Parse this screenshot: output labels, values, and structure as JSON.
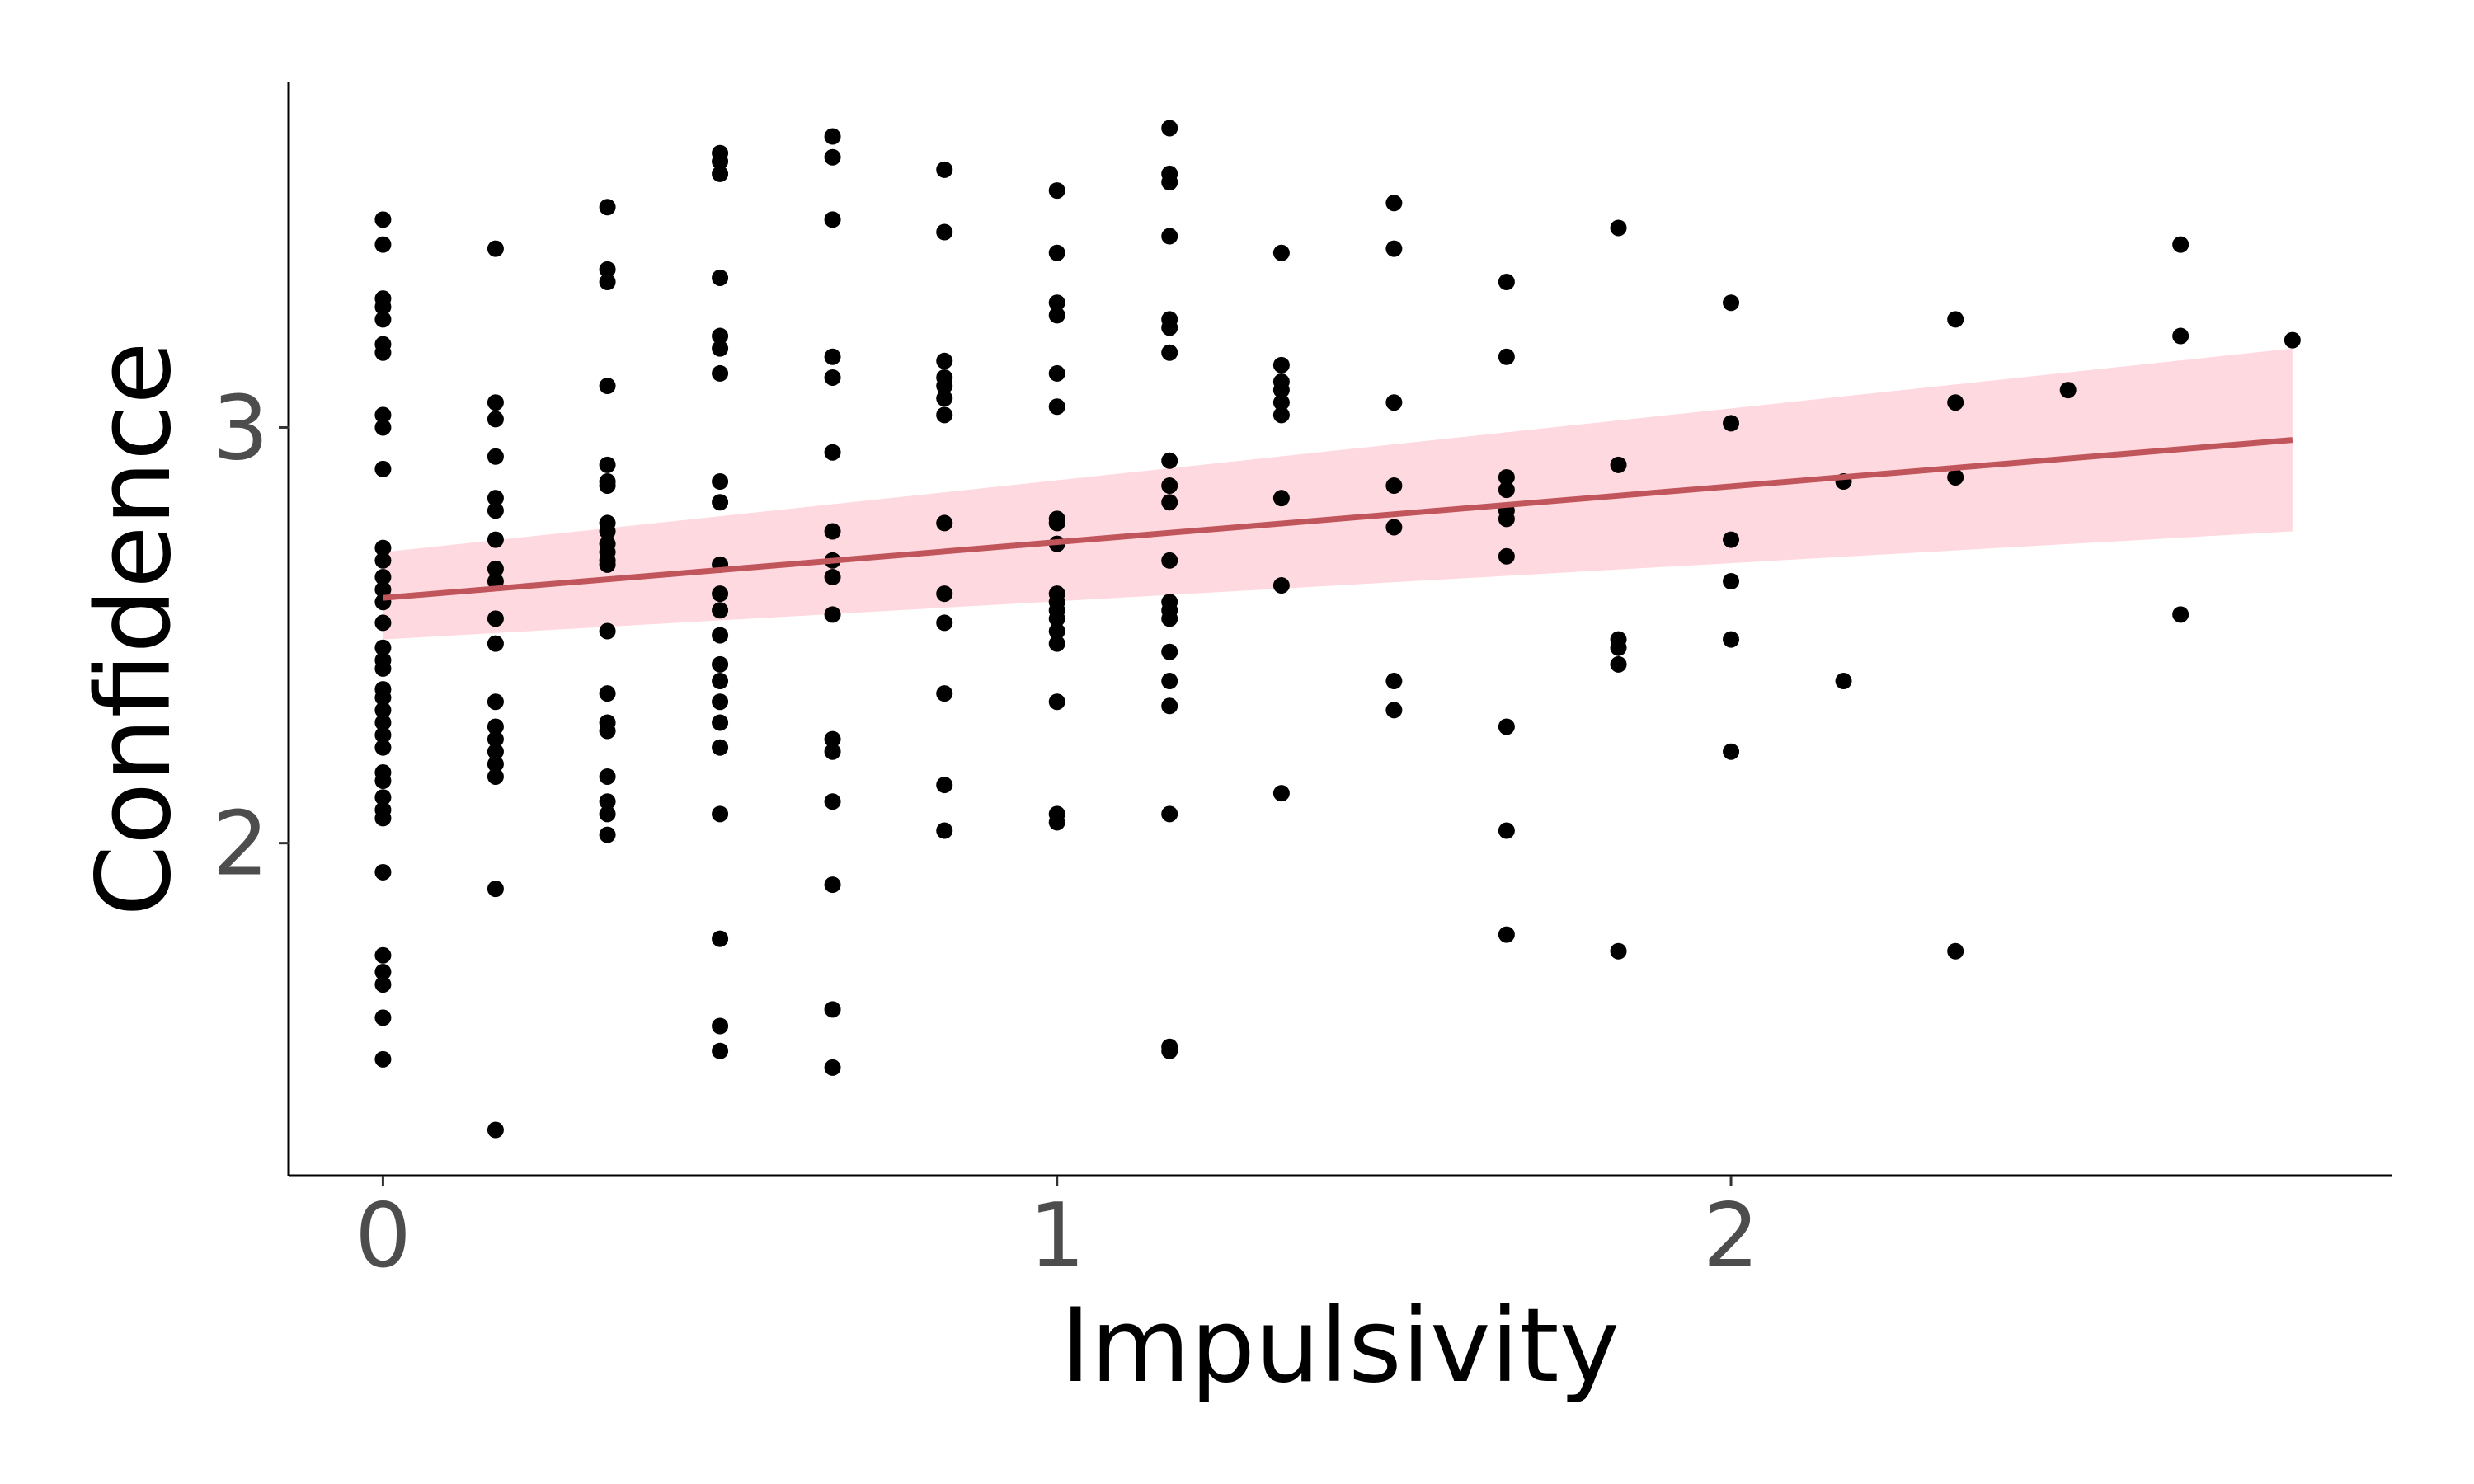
{
  "chart_data": {
    "type": "scatter",
    "title": "",
    "xlabel": "Impulsivity",
    "ylabel": "Confidence",
    "xlim": [
      -0.14,
      2.98
    ],
    "ylim": [
      1.2,
      3.83
    ],
    "xticks": [
      0,
      1,
      2
    ],
    "yticks": [
      2,
      3
    ],
    "x_tick_labels": [
      "0",
      "1",
      "2"
    ],
    "y_tick_labels": [
      "2",
      "3"
    ],
    "grid": false,
    "legend": "none",
    "colors": {
      "points": "#000000",
      "fit_line": "#c0565b",
      "ci_band": "#ffc0cb"
    },
    "fit": {
      "x": [
        0,
        2.833
      ],
      "y": [
        2.59,
        2.97
      ],
      "ci_lower": [
        2.49,
        2.75
      ],
      "ci_upper": [
        2.7,
        3.19
      ]
    },
    "points": [
      {
        "x": 0,
        "y": 3.5
      },
      {
        "x": 0,
        "y": 3.44
      },
      {
        "x": 0,
        "y": 3.31
      },
      {
        "x": 0,
        "y": 3.29
      },
      {
        "x": 0,
        "y": 3.26
      },
      {
        "x": 0,
        "y": 3.2
      },
      {
        "x": 0,
        "y": 3.18
      },
      {
        "x": 0,
        "y": 3.03
      },
      {
        "x": 0,
        "y": 3.0
      },
      {
        "x": 0,
        "y": 2.9
      },
      {
        "x": 0,
        "y": 2.71
      },
      {
        "x": 0,
        "y": 2.68
      },
      {
        "x": 0,
        "y": 2.64
      },
      {
        "x": 0,
        "y": 2.61
      },
      {
        "x": 0,
        "y": 2.58
      },
      {
        "x": 0,
        "y": 2.53
      },
      {
        "x": 0,
        "y": 2.47
      },
      {
        "x": 0,
        "y": 2.44
      },
      {
        "x": 0,
        "y": 2.42
      },
      {
        "x": 0,
        "y": 2.37
      },
      {
        "x": 0,
        "y": 2.35
      },
      {
        "x": 0,
        "y": 2.32
      },
      {
        "x": 0,
        "y": 2.29
      },
      {
        "x": 0,
        "y": 2.26
      },
      {
        "x": 0,
        "y": 2.23
      },
      {
        "x": 0,
        "y": 2.17
      },
      {
        "x": 0,
        "y": 2.15
      },
      {
        "x": 0,
        "y": 2.11
      },
      {
        "x": 0,
        "y": 2.08
      },
      {
        "x": 0,
        "y": 2.06
      },
      {
        "x": 0,
        "y": 1.93
      },
      {
        "x": 0,
        "y": 1.73
      },
      {
        "x": 0,
        "y": 1.69
      },
      {
        "x": 0,
        "y": 1.66
      },
      {
        "x": 0,
        "y": 1.58
      },
      {
        "x": 0,
        "y": 1.48
      },
      {
        "x": 0.167,
        "y": 3.43
      },
      {
        "x": 0.167,
        "y": 3.06
      },
      {
        "x": 0.167,
        "y": 3.02
      },
      {
        "x": 0.167,
        "y": 2.93
      },
      {
        "x": 0.167,
        "y": 2.83
      },
      {
        "x": 0.167,
        "y": 2.8
      },
      {
        "x": 0.167,
        "y": 2.73
      },
      {
        "x": 0.167,
        "y": 2.66
      },
      {
        "x": 0.167,
        "y": 2.63
      },
      {
        "x": 0.167,
        "y": 2.54
      },
      {
        "x": 0.167,
        "y": 2.48
      },
      {
        "x": 0.167,
        "y": 2.34
      },
      {
        "x": 0.167,
        "y": 2.28
      },
      {
        "x": 0.167,
        "y": 2.25
      },
      {
        "x": 0.167,
        "y": 2.22
      },
      {
        "x": 0.167,
        "y": 2.19
      },
      {
        "x": 0.167,
        "y": 2.16
      },
      {
        "x": 0.167,
        "y": 1.89
      },
      {
        "x": 0.167,
        "y": 1.31
      },
      {
        "x": 0.333,
        "y": 3.53
      },
      {
        "x": 0.333,
        "y": 3.38
      },
      {
        "x": 0.333,
        "y": 3.35
      },
      {
        "x": 0.333,
        "y": 3.1
      },
      {
        "x": 0.333,
        "y": 2.91
      },
      {
        "x": 0.333,
        "y": 2.87
      },
      {
        "x": 0.333,
        "y": 2.86
      },
      {
        "x": 0.333,
        "y": 2.77
      },
      {
        "x": 0.333,
        "y": 2.75
      },
      {
        "x": 0.333,
        "y": 2.72
      },
      {
        "x": 0.333,
        "y": 2.7
      },
      {
        "x": 0.333,
        "y": 2.68
      },
      {
        "x": 0.333,
        "y": 2.67
      },
      {
        "x": 0.333,
        "y": 2.51
      },
      {
        "x": 0.333,
        "y": 2.36
      },
      {
        "x": 0.333,
        "y": 2.29
      },
      {
        "x": 0.333,
        "y": 2.27
      },
      {
        "x": 0.333,
        "y": 2.16
      },
      {
        "x": 0.333,
        "y": 2.1
      },
      {
        "x": 0.333,
        "y": 2.07
      },
      {
        "x": 0.333,
        "y": 2.02
      },
      {
        "x": 0.5,
        "y": 3.66
      },
      {
        "x": 0.5,
        "y": 3.64
      },
      {
        "x": 0.5,
        "y": 3.61
      },
      {
        "x": 0.5,
        "y": 3.36
      },
      {
        "x": 0.5,
        "y": 3.22
      },
      {
        "x": 0.5,
        "y": 3.19
      },
      {
        "x": 0.5,
        "y": 3.13
      },
      {
        "x": 0.5,
        "y": 2.87
      },
      {
        "x": 0.5,
        "y": 2.82
      },
      {
        "x": 0.5,
        "y": 2.67
      },
      {
        "x": 0.5,
        "y": 2.6
      },
      {
        "x": 0.5,
        "y": 2.56
      },
      {
        "x": 0.5,
        "y": 2.5
      },
      {
        "x": 0.5,
        "y": 2.43
      },
      {
        "x": 0.5,
        "y": 2.39
      },
      {
        "x": 0.5,
        "y": 2.34
      },
      {
        "x": 0.5,
        "y": 2.29
      },
      {
        "x": 0.5,
        "y": 2.23
      },
      {
        "x": 0.5,
        "y": 2.07
      },
      {
        "x": 0.5,
        "y": 1.77
      },
      {
        "x": 0.5,
        "y": 1.56
      },
      {
        "x": 0.5,
        "y": 1.5
      },
      {
        "x": 0.667,
        "y": 3.7
      },
      {
        "x": 0.667,
        "y": 3.65
      },
      {
        "x": 0.667,
        "y": 3.5
      },
      {
        "x": 0.667,
        "y": 3.17
      },
      {
        "x": 0.667,
        "y": 3.12
      },
      {
        "x": 0.667,
        "y": 2.94
      },
      {
        "x": 0.667,
        "y": 2.75
      },
      {
        "x": 0.667,
        "y": 2.68
      },
      {
        "x": 0.667,
        "y": 2.64
      },
      {
        "x": 0.667,
        "y": 2.55
      },
      {
        "x": 0.667,
        "y": 2.25
      },
      {
        "x": 0.667,
        "y": 2.22
      },
      {
        "x": 0.667,
        "y": 2.1
      },
      {
        "x": 0.667,
        "y": 1.9
      },
      {
        "x": 0.667,
        "y": 1.6
      },
      {
        "x": 0.667,
        "y": 1.46
      },
      {
        "x": 0.833,
        "y": 3.62
      },
      {
        "x": 0.833,
        "y": 3.47
      },
      {
        "x": 0.833,
        "y": 3.16
      },
      {
        "x": 0.833,
        "y": 3.12
      },
      {
        "x": 0.833,
        "y": 3.1
      },
      {
        "x": 0.833,
        "y": 3.07
      },
      {
        "x": 0.833,
        "y": 3.03
      },
      {
        "x": 0.833,
        "y": 2.77
      },
      {
        "x": 0.833,
        "y": 2.6
      },
      {
        "x": 0.833,
        "y": 2.53
      },
      {
        "x": 0.833,
        "y": 2.36
      },
      {
        "x": 0.833,
        "y": 2.14
      },
      {
        "x": 0.833,
        "y": 2.03
      },
      {
        "x": 1,
        "y": 3.57
      },
      {
        "x": 1,
        "y": 3.42
      },
      {
        "x": 1,
        "y": 3.3
      },
      {
        "x": 1,
        "y": 3.27
      },
      {
        "x": 1,
        "y": 3.13
      },
      {
        "x": 1,
        "y": 3.05
      },
      {
        "x": 1,
        "y": 2.78
      },
      {
        "x": 1,
        "y": 2.77
      },
      {
        "x": 1,
        "y": 2.72
      },
      {
        "x": 1,
        "y": 2.6
      },
      {
        "x": 1,
        "y": 2.58
      },
      {
        "x": 1,
        "y": 2.56
      },
      {
        "x": 1,
        "y": 2.54
      },
      {
        "x": 1,
        "y": 2.51
      },
      {
        "x": 1,
        "y": 2.48
      },
      {
        "x": 1,
        "y": 2.34
      },
      {
        "x": 1,
        "y": 2.07
      },
      {
        "x": 1,
        "y": 2.05
      },
      {
        "x": 1.167,
        "y": 3.72
      },
      {
        "x": 1.167,
        "y": 3.61
      },
      {
        "x": 1.167,
        "y": 3.59
      },
      {
        "x": 1.167,
        "y": 3.46
      },
      {
        "x": 1.167,
        "y": 3.26
      },
      {
        "x": 1.167,
        "y": 3.24
      },
      {
        "x": 1.167,
        "y": 3.18
      },
      {
        "x": 1.167,
        "y": 2.92
      },
      {
        "x": 1.167,
        "y": 2.86
      },
      {
        "x": 1.167,
        "y": 2.82
      },
      {
        "x": 1.167,
        "y": 2.68
      },
      {
        "x": 1.167,
        "y": 2.58
      },
      {
        "x": 1.167,
        "y": 2.56
      },
      {
        "x": 1.167,
        "y": 2.54
      },
      {
        "x": 1.167,
        "y": 2.46
      },
      {
        "x": 1.167,
        "y": 2.39
      },
      {
        "x": 1.167,
        "y": 2.33
      },
      {
        "x": 1.167,
        "y": 2.07
      },
      {
        "x": 1.167,
        "y": 1.51
      },
      {
        "x": 1.167,
        "y": 1.5
      },
      {
        "x": 1.333,
        "y": 3.42
      },
      {
        "x": 1.333,
        "y": 3.15
      },
      {
        "x": 1.333,
        "y": 3.11
      },
      {
        "x": 1.333,
        "y": 3.09
      },
      {
        "x": 1.333,
        "y": 3.06
      },
      {
        "x": 1.333,
        "y": 3.03
      },
      {
        "x": 1.333,
        "y": 2.83
      },
      {
        "x": 1.333,
        "y": 2.62
      },
      {
        "x": 1.333,
        "y": 2.12
      },
      {
        "x": 1.5,
        "y": 3.54
      },
      {
        "x": 1.5,
        "y": 3.43
      },
      {
        "x": 1.5,
        "y": 3.06
      },
      {
        "x": 1.5,
        "y": 2.86
      },
      {
        "x": 1.5,
        "y": 2.76
      },
      {
        "x": 1.5,
        "y": 2.39
      },
      {
        "x": 1.5,
        "y": 2.32
      },
      {
        "x": 1.667,
        "y": 3.35
      },
      {
        "x": 1.667,
        "y": 3.17
      },
      {
        "x": 1.667,
        "y": 2.88
      },
      {
        "x": 1.667,
        "y": 2.85
      },
      {
        "x": 1.667,
        "y": 2.8
      },
      {
        "x": 1.667,
        "y": 2.78
      },
      {
        "x": 1.667,
        "y": 2.69
      },
      {
        "x": 1.667,
        "y": 2.28
      },
      {
        "x": 1.667,
        "y": 2.03
      },
      {
        "x": 1.667,
        "y": 1.78
      },
      {
        "x": 1.833,
        "y": 3.48
      },
      {
        "x": 1.833,
        "y": 2.91
      },
      {
        "x": 1.833,
        "y": 2.49
      },
      {
        "x": 1.833,
        "y": 2.47
      },
      {
        "x": 1.833,
        "y": 2.43
      },
      {
        "x": 1.833,
        "y": 1.74
      },
      {
        "x": 2,
        "y": 3.3
      },
      {
        "x": 2,
        "y": 3.01
      },
      {
        "x": 2,
        "y": 2.73
      },
      {
        "x": 2,
        "y": 2.63
      },
      {
        "x": 2,
        "y": 2.49
      },
      {
        "x": 2,
        "y": 2.22
      },
      {
        "x": 2.167,
        "y": 2.87
      },
      {
        "x": 2.167,
        "y": 2.39
      },
      {
        "x": 2.333,
        "y": 3.26
      },
      {
        "x": 2.333,
        "y": 3.06
      },
      {
        "x": 2.333,
        "y": 2.88
      },
      {
        "x": 2.333,
        "y": 1.74
      },
      {
        "x": 2.5,
        "y": 3.09
      },
      {
        "x": 2.667,
        "y": 3.44
      },
      {
        "x": 2.667,
        "y": 3.22
      },
      {
        "x": 2.667,
        "y": 2.55
      },
      {
        "x": 2.833,
        "y": 3.21
      }
    ]
  }
}
